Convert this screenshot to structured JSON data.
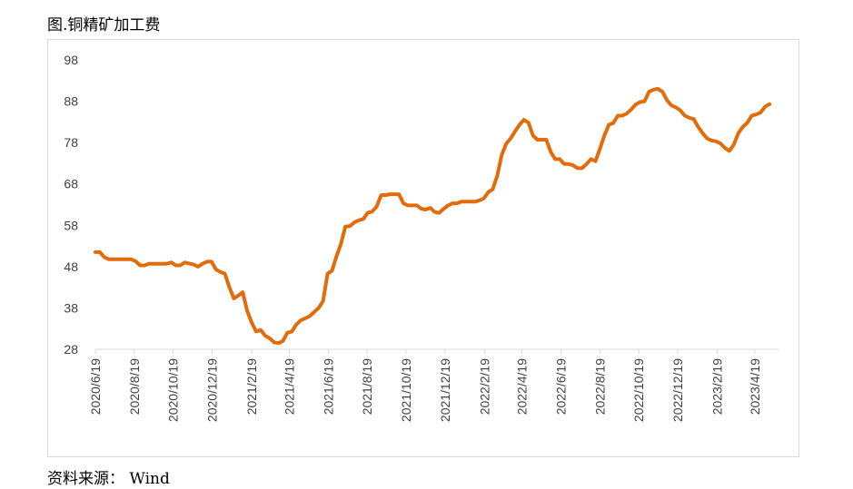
{
  "title": "图.铜精矿加工费",
  "source": "资料来源： Wind",
  "chart_data": {
    "type": "line",
    "title": "图.铜精矿加工费",
    "ylim": [
      28,
      98
    ],
    "yticks": [
      28,
      38,
      48,
      58,
      68,
      78,
      88,
      98
    ],
    "grid": false,
    "line_color": "#e36c0a",
    "x_start": "2020-06-19",
    "x_end": "2023-05-26",
    "xticks": [
      "2020/6/19",
      "2020/8/19",
      "2020/10/19",
      "2020/12/19",
      "2021/2/19",
      "2021/4/19",
      "2021/6/19",
      "2021/8/19",
      "2021/10/19",
      "2021/12/19",
      "2022/2/19",
      "2022/4/19",
      "2022/6/19",
      "2022/8/19",
      "2022/10/19",
      "2022/12/19",
      "2023/2/19",
      "2023/4/19"
    ],
    "series": [
      {
        "points": [
          [
            "2020-06-19",
            51.5
          ],
          [
            "2020-06-26",
            51.5
          ],
          [
            "2020-07-03",
            50.3
          ],
          [
            "2020-07-10",
            49.8
          ],
          [
            "2020-07-24",
            49.8
          ],
          [
            "2020-08-07",
            49.8
          ],
          [
            "2020-08-14",
            49.8
          ],
          [
            "2020-08-21",
            49.3
          ],
          [
            "2020-08-28",
            48.3
          ],
          [
            "2020-09-04",
            48.3
          ],
          [
            "2020-09-11",
            48.7
          ],
          [
            "2020-09-25",
            48.7
          ],
          [
            "2020-10-09",
            48.7
          ],
          [
            "2020-10-16",
            49.0
          ],
          [
            "2020-10-23",
            48.3
          ],
          [
            "2020-10-30",
            48.3
          ],
          [
            "2020-11-06",
            49.0
          ],
          [
            "2020-11-20",
            48.5
          ],
          [
            "2020-11-27",
            48.0
          ],
          [
            "2020-12-04",
            48.7
          ],
          [
            "2020-12-11",
            49.2
          ],
          [
            "2020-12-18",
            49.2
          ],
          [
            "2020-12-25",
            47.3
          ],
          [
            "2021-01-01",
            46.7
          ],
          [
            "2021-01-08",
            46.3
          ],
          [
            "2021-01-15",
            43.0
          ],
          [
            "2021-01-22",
            40.3
          ],
          [
            "2021-01-29",
            41.0
          ],
          [
            "2021-02-05",
            41.8
          ],
          [
            "2021-02-12",
            37.3
          ],
          [
            "2021-02-19",
            34.5
          ],
          [
            "2021-02-26",
            32.3
          ],
          [
            "2021-03-05",
            32.7
          ],
          [
            "2021-03-12",
            31.3
          ],
          [
            "2021-03-19",
            30.7
          ],
          [
            "2021-03-26",
            29.7
          ],
          [
            "2021-04-02",
            29.5
          ],
          [
            "2021-04-09",
            30.0
          ],
          [
            "2021-04-16",
            32.0
          ],
          [
            "2021-04-23",
            32.3
          ],
          [
            "2021-04-30",
            34.0
          ],
          [
            "2021-05-07",
            35.0
          ],
          [
            "2021-05-14",
            35.5
          ],
          [
            "2021-05-21",
            36.0
          ],
          [
            "2021-05-28",
            37.0
          ],
          [
            "2021-06-04",
            38.0
          ],
          [
            "2021-06-11",
            39.7
          ],
          [
            "2021-06-18",
            46.3
          ],
          [
            "2021-06-25",
            47.0
          ],
          [
            "2021-07-02",
            50.5
          ],
          [
            "2021-07-09",
            53.5
          ],
          [
            "2021-07-16",
            57.7
          ],
          [
            "2021-07-23",
            57.8
          ],
          [
            "2021-07-30",
            58.7
          ],
          [
            "2021-08-06",
            59.2
          ],
          [
            "2021-08-13",
            59.5
          ],
          [
            "2021-08-20",
            61.0
          ],
          [
            "2021-08-27",
            61.3
          ],
          [
            "2021-09-03",
            62.5
          ],
          [
            "2021-09-10",
            65.3
          ],
          [
            "2021-09-17",
            65.3
          ],
          [
            "2021-09-24",
            65.5
          ],
          [
            "2021-10-08",
            65.5
          ],
          [
            "2021-10-15",
            63.3
          ],
          [
            "2021-10-22",
            62.8
          ],
          [
            "2021-10-29",
            62.8
          ],
          [
            "2021-11-05",
            62.8
          ],
          [
            "2021-11-12",
            62.0
          ],
          [
            "2021-11-19",
            61.8
          ],
          [
            "2021-11-26",
            62.2
          ],
          [
            "2021-12-03",
            61.2
          ],
          [
            "2021-12-10",
            61.0
          ],
          [
            "2021-12-17",
            62.0
          ],
          [
            "2021-12-24",
            62.8
          ],
          [
            "2021-12-31",
            63.3
          ],
          [
            "2022-01-07",
            63.3
          ],
          [
            "2022-01-14",
            63.7
          ],
          [
            "2022-01-21",
            63.7
          ],
          [
            "2022-01-28",
            63.7
          ],
          [
            "2022-02-04",
            63.7
          ],
          [
            "2022-02-11",
            64.0
          ],
          [
            "2022-02-18",
            64.5
          ],
          [
            "2022-02-25",
            66.0
          ],
          [
            "2022-03-04",
            66.7
          ],
          [
            "2022-03-11",
            70.0
          ],
          [
            "2022-03-18",
            75.0
          ],
          [
            "2022-03-25",
            77.7
          ],
          [
            "2022-04-01",
            79.0
          ],
          [
            "2022-04-08",
            80.7
          ],
          [
            "2022-04-15",
            82.3
          ],
          [
            "2022-04-22",
            83.5
          ],
          [
            "2022-04-29",
            82.8
          ],
          [
            "2022-05-06",
            79.7
          ],
          [
            "2022-05-13",
            78.7
          ],
          [
            "2022-05-20",
            78.7
          ],
          [
            "2022-05-27",
            78.7
          ],
          [
            "2022-06-03",
            75.7
          ],
          [
            "2022-06-10",
            74.0
          ],
          [
            "2022-06-17",
            74.0
          ],
          [
            "2022-06-24",
            72.8
          ],
          [
            "2022-07-01",
            72.8
          ],
          [
            "2022-07-08",
            72.5
          ],
          [
            "2022-07-15",
            71.8
          ],
          [
            "2022-07-22",
            71.8
          ],
          [
            "2022-07-29",
            72.8
          ],
          [
            "2022-08-05",
            74.0
          ],
          [
            "2022-08-12",
            73.5
          ],
          [
            "2022-08-19",
            76.5
          ],
          [
            "2022-08-26",
            79.7
          ],
          [
            "2022-09-02",
            82.3
          ],
          [
            "2022-09-09",
            82.7
          ],
          [
            "2022-09-16",
            84.5
          ],
          [
            "2022-09-23",
            84.5
          ],
          [
            "2022-09-30",
            85.0
          ],
          [
            "2022-10-07",
            86.0
          ],
          [
            "2022-10-14",
            87.2
          ],
          [
            "2022-10-21",
            87.8
          ],
          [
            "2022-10-28",
            88.0
          ],
          [
            "2022-11-04",
            90.3
          ],
          [
            "2022-11-11",
            90.8
          ],
          [
            "2022-11-18",
            91.0
          ],
          [
            "2022-11-25",
            90.3
          ],
          [
            "2022-12-02",
            88.3
          ],
          [
            "2022-12-09",
            87.0
          ],
          [
            "2022-12-16",
            86.5
          ],
          [
            "2022-12-23",
            85.8
          ],
          [
            "2022-12-30",
            84.5
          ],
          [
            "2023-01-06",
            84.0
          ],
          [
            "2023-01-13",
            83.7
          ],
          [
            "2023-01-20",
            81.8
          ],
          [
            "2023-01-27",
            80.3
          ],
          [
            "2023-02-03",
            79.0
          ],
          [
            "2023-02-10",
            78.5
          ],
          [
            "2023-02-17",
            78.3
          ],
          [
            "2023-02-24",
            77.8
          ],
          [
            "2023-03-03",
            76.7
          ],
          [
            "2023-03-10",
            76.0
          ],
          [
            "2023-03-17",
            77.5
          ],
          [
            "2023-03-24",
            80.3
          ],
          [
            "2023-03-31",
            81.8
          ],
          [
            "2023-04-07",
            82.8
          ],
          [
            "2023-04-14",
            84.5
          ],
          [
            "2023-04-21",
            84.8
          ],
          [
            "2023-04-28",
            85.3
          ],
          [
            "2023-05-05",
            86.7
          ],
          [
            "2023-05-12",
            87.3
          ]
        ]
      }
    ]
  }
}
